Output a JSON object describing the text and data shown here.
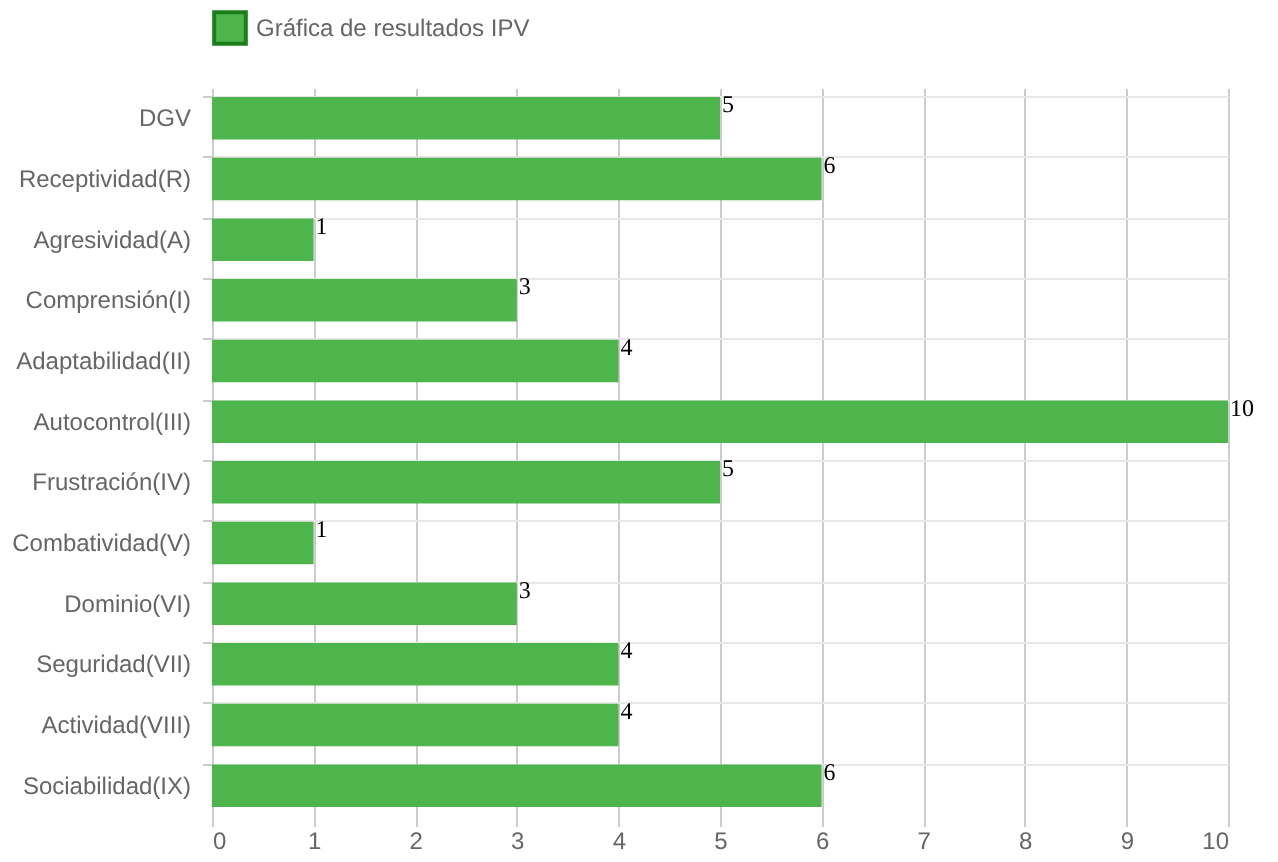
{
  "chart_data": {
    "type": "bar",
    "orientation": "horizontal",
    "categories": [
      "DGV",
      "Receptividad(R)",
      "Agresividad(A)",
      "Comprensión(I)",
      "Adaptabilidad(II)",
      "Autocontrol(III)",
      "Frustración(IV)",
      "Combatividad(V)",
      "Dominio(VI)",
      "Seguridad(VII)",
      "Actividad(VIII)",
      "Sociabilidad(IX)"
    ],
    "series": [
      {
        "name": "Gráfica de resultados IPV",
        "color": "#4db54b",
        "values": [
          5,
          6,
          1,
          3,
          4,
          10,
          5,
          1,
          3,
          4,
          4,
          6
        ]
      }
    ],
    "xlim": [
      0,
      10
    ],
    "xticks": [
      0,
      1,
      2,
      3,
      4,
      5,
      6,
      7,
      8,
      9,
      10
    ],
    "grid": true,
    "legend": "top",
    "data_labels": true
  }
}
